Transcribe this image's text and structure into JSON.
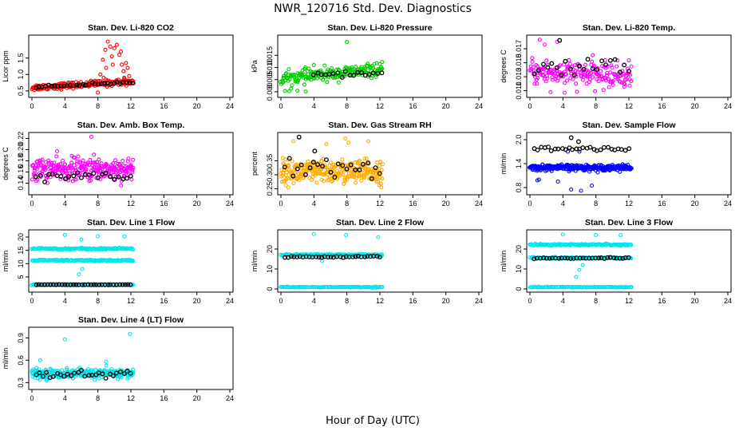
{
  "figure": {
    "title": "NWR_120716  Std. Dev. Diagnostics",
    "xlabel": "Hour of Day (UTC)"
  },
  "chart_data": [
    {
      "id": "co2",
      "type": "scatter",
      "title": "Stan. Dev. Li-820 CO2",
      "ylabel": "Licor ppm",
      "xlim": [
        0,
        24
      ],
      "xticks": [
        "0",
        "4",
        "8",
        "12",
        "16",
        "20",
        "24"
      ],
      "ylim": [
        0.4,
        2.1
      ],
      "yticks": [
        {
          "v": 0.5,
          "label": "0.5"
        },
        {
          "v": 1.0,
          "label": "1.0"
        },
        {
          "v": 1.5,
          "label": "1.5"
        }
      ],
      "series": [
        {
          "name": "sample",
          "color": "#ff0000",
          "center": 0.6,
          "spread": 0.08,
          "trend": 0.015,
          "x0": 0,
          "x1": 12.3,
          "n": 180,
          "extra": [
            [
              8.3,
              1.0
            ],
            [
              8.6,
              1.45
            ],
            [
              8.9,
              1.75
            ],
            [
              9.2,
              2.0
            ],
            [
              9.5,
              1.85
            ],
            [
              9.7,
              1.55
            ],
            [
              10.0,
              1.8
            ],
            [
              10.3,
              1.9
            ],
            [
              10.6,
              1.6
            ],
            [
              10.9,
              1.3
            ],
            [
              11.1,
              1.1
            ],
            [
              11.4,
              1.35
            ],
            [
              11.6,
              1.2
            ],
            [
              11.8,
              0.95
            ],
            [
              9.0,
              1.2
            ],
            [
              9.8,
              1.3
            ],
            [
              10.8,
              1.7
            ],
            [
              11.2,
              0.9
            ],
            [
              8.7,
              0.9
            ],
            [
              8.0,
              0.45
            ]
          ]
        },
        {
          "name": "reference",
          "color": "#000000",
          "center": 0.62,
          "spread": 0.03,
          "trend": 0.012,
          "x0": 0.5,
          "x1": 12.2,
          "n": 32,
          "extra": []
        }
      ]
    },
    {
      "id": "pressure",
      "type": "scatter",
      "title": "Stan. Dev. Li-820 Pressure",
      "ylabel": "kPa",
      "xlim": [
        0,
        24
      ],
      "xticks": [
        "0",
        "4",
        "8",
        "12",
        "16",
        "20",
        "24"
      ],
      "ylim": [
        -0.001,
        0.022
      ],
      "yticks": [
        {
          "v": 0.0,
          "label": "0.000"
        },
        {
          "v": 0.005,
          "label": "0.005"
        },
        {
          "v": 0.01,
          "label": "0.010"
        },
        {
          "v": 0.015,
          "label": "0.015"
        }
      ],
      "series": [
        {
          "name": "sample",
          "color": "#00cc00",
          "center": 0.0055,
          "spread": 0.0022,
          "trend": 0.0003,
          "x0": 0,
          "x1": 12.3,
          "n": 200,
          "extra": [
            [
              8.0,
              0.0205
            ],
            [
              4.0,
              0.011
            ],
            [
              1.0,
              0.0002
            ],
            [
              2.0,
              0.0004
            ],
            [
              3.0,
              0.0001
            ],
            [
              0.5,
              0.0003
            ]
          ]
        },
        {
          "name": "reference",
          "color": "#000000",
          "center": 0.0068,
          "spread": 0.0008,
          "trend": 0.0001,
          "x0": 4.0,
          "x1": 12.2,
          "n": 18,
          "extra": []
        }
      ]
    },
    {
      "id": "temp",
      "type": "scatter",
      "title": "Stan. Dev. Li-820 Temp.",
      "ylabel": "degrees C",
      "xlim": [
        0,
        24
      ],
      "xticks": [
        "0",
        "4",
        "8",
        "12",
        "16",
        "20",
        "24"
      ],
      "ylim": [
        0.0105,
        0.0185
      ],
      "yticks": [
        {
          "v": 0.011,
          "label": "0.011"
        },
        {
          "v": 0.013,
          "label": "0.013"
        },
        {
          "v": 0.015,
          "label": "0.015"
        },
        {
          "v": 0.017,
          "label": "0.017"
        }
      ],
      "series": [
        {
          "name": "sample",
          "color": "#ff00ff",
          "center": 0.0137,
          "spread": 0.0015,
          "trend": -5e-05,
          "x0": 0,
          "x1": 12.3,
          "n": 200,
          "extra": [
            [
              1.2,
              0.0183
            ],
            [
              3.3,
              0.018
            ],
            [
              1.8,
              0.0176
            ],
            [
              2.5,
              0.0108
            ],
            [
              4.2,
              0.0107
            ]
          ]
        },
        {
          "name": "reference",
          "color": "#000000",
          "center": 0.0143,
          "spread": 0.0012,
          "trend": 0.0,
          "x0": 0.5,
          "x1": 12.0,
          "n": 22,
          "extra": [
            [
              3.6,
              0.0182
            ]
          ]
        }
      ]
    },
    {
      "id": "boxtemp",
      "type": "scatter",
      "title": "Stan. Dev. Amb. Box Temp.",
      "ylabel": "degrees C",
      "xlim": [
        0,
        24
      ],
      "xticks": [
        "0",
        "4",
        "8",
        "12",
        "16",
        "20",
        "24"
      ],
      "ylim": [
        0.125,
        0.225
      ],
      "yticks": [
        {
          "v": 0.14,
          "label": "0.14"
        },
        {
          "v": 0.16,
          "label": "0.16"
        },
        {
          "v": 0.18,
          "label": "0.18"
        },
        {
          "v": 0.2,
          "label": "0.20"
        },
        {
          "v": 0.22,
          "label": "0.22"
        }
      ],
      "series": [
        {
          "name": "sample",
          "color": "#ff00ff",
          "center": 0.165,
          "spread": 0.017,
          "trend": 0.0,
          "x0": 0,
          "x1": 12.3,
          "n": 260,
          "extra": [
            [
              7.2,
              0.223
            ]
          ]
        },
        {
          "name": "reference",
          "color": "#000000",
          "center": 0.153,
          "spread": 0.009,
          "trend": 0.0,
          "x0": 0.5,
          "x1": 12.0,
          "n": 24,
          "extra": []
        }
      ]
    },
    {
      "id": "rh",
      "type": "scatter",
      "title": "Stan. Dev. Gas Stream RH",
      "ylabel": "percent",
      "xlim": [
        0,
        24
      ],
      "xticks": [
        "0",
        "4",
        "8",
        "12",
        "16",
        "20",
        "24"
      ],
      "ylim": [
        0.24,
        0.44
      ],
      "yticks": [
        {
          "v": 0.25,
          "label": "0.25"
        },
        {
          "v": 0.3,
          "label": "0.30"
        },
        {
          "v": 0.35,
          "label": "0.35"
        }
      ],
      "series": [
        {
          "name": "sample",
          "color": "#ffaa00",
          "center": 0.31,
          "spread": 0.035,
          "trend": 0.0,
          "x0": 0,
          "x1": 12.3,
          "n": 300,
          "extra": [
            [
              1.5,
              0.42
            ],
            [
              7.8,
              0.43
            ],
            [
              8.2,
              0.415
            ],
            [
              10.6,
              0.42
            ],
            [
              5.5,
              0.41
            ]
          ]
        },
        {
          "name": "reference",
          "color": "#000000",
          "center": 0.32,
          "spread": 0.03,
          "trend": 0.0,
          "x0": 0.5,
          "x1": 12.0,
          "n": 24,
          "extra": [
            [
              2.2,
              0.435
            ],
            [
              4.1,
              0.385
            ]
          ]
        }
      ]
    },
    {
      "id": "sampleflow",
      "type": "scatter",
      "title": "Stan. Dev. Sample Flow",
      "ylabel": "ml/min",
      "xlim": [
        0,
        24
      ],
      "xticks": [
        "0",
        "4",
        "8",
        "12",
        "16",
        "20",
        "24"
      ],
      "ylim": [
        0.7,
        2.1
      ],
      "yticks": [
        {
          "v": 0.8,
          "label": "0.8"
        },
        {
          "v": 1.4,
          "label": "1.4"
        },
        {
          "v": 2.0,
          "label": "2.0"
        }
      ],
      "series": [
        {
          "name": "sample",
          "color": "#0000ff",
          "center": 1.3,
          "spread": 0.06,
          "trend": 0.0,
          "x0": 0,
          "x1": 12.3,
          "n": 280,
          "extra": [
            [
              0.9,
              0.98
            ],
            [
              1.1,
              1.0
            ],
            [
              3.4,
              0.95
            ],
            [
              5.0,
              0.75
            ],
            [
              6.2,
              0.72
            ],
            [
              7.5,
              0.85
            ],
            [
              4.6,
              1.7
            ],
            [
              6.0,
              1.7
            ]
          ]
        },
        {
          "name": "reference",
          "color": "#000000",
          "center": 1.76,
          "spread": 0.05,
          "trend": 0.0,
          "x0": 0.5,
          "x1": 12.0,
          "n": 28,
          "extra": [
            [
              5.0,
              2.05
            ],
            [
              5.9,
              1.95
            ]
          ]
        }
      ]
    },
    {
      "id": "line1",
      "type": "scatter",
      "title": "Stan. Dev. Line 1 Flow",
      "ylabel": "ml/min",
      "xlim": [
        0,
        24
      ],
      "xticks": [
        "0",
        "4",
        "8",
        "12",
        "16",
        "20",
        "24"
      ],
      "ylim": [
        0.5,
        21.5
      ],
      "yticks": [
        {
          "v": 5,
          "label": "5"
        },
        {
          "v": 10,
          "label": "10"
        },
        {
          "v": 15,
          "label": "15"
        },
        {
          "v": 20,
          "label": "20"
        }
      ],
      "series": [
        {
          "name": "band-high",
          "color": "#00e5ee",
          "center": 15.6,
          "spread": 0.25,
          "trend": 0.0,
          "x0": 0,
          "x1": 12.3,
          "n": 130,
          "extra": [
            [
              4.0,
              20.8
            ],
            [
              8.0,
              20.3
            ],
            [
              11.2,
              20.2
            ],
            [
              6.0,
              19.0
            ]
          ]
        },
        {
          "name": "band-mid",
          "color": "#00e5ee",
          "center": 11.2,
          "spread": 0.25,
          "trend": 0.0,
          "x0": 0,
          "x1": 12.3,
          "n": 130,
          "extra": [
            [
              5.7,
              6.0
            ],
            [
              6.1,
              8.0
            ]
          ]
        },
        {
          "name": "band-low",
          "color": "#00e5ee",
          "center": 2.0,
          "spread": 0.12,
          "trend": 0.0,
          "x0": 0,
          "x1": 12.3,
          "n": 100,
          "extra": []
        },
        {
          "name": "reference",
          "color": "#000000",
          "center": 2.1,
          "spread": 0.05,
          "trend": 0.0,
          "x0": 0.5,
          "x1": 12.0,
          "n": 34,
          "extra": []
        }
      ]
    },
    {
      "id": "line2",
      "type": "scatter",
      "title": "Stan. Dev. Line 2 Flow",
      "ylabel": "ml/min",
      "xlim": [
        0,
        24
      ],
      "xticks": [
        "0",
        "4",
        "8",
        "12",
        "16",
        "20",
        "24"
      ],
      "ylim": [
        0,
        28
      ],
      "yticks": [
        {
          "v": 0,
          "label": "0"
        },
        {
          "v": 10,
          "label": "10"
        },
        {
          "v": 20,
          "label": "20"
        }
      ],
      "series": [
        {
          "name": "band-high",
          "color": "#00e5ee",
          "center": 17.0,
          "spread": 0.35,
          "trend": 0.0,
          "x0": 0,
          "x1": 12.3,
          "n": 130,
          "extra": [
            [
              4.0,
              27.5
            ],
            [
              7.9,
              27.0
            ],
            [
              11.8,
              26.0
            ],
            [
              5.0,
              14.0
            ]
          ]
        },
        {
          "name": "band-low",
          "color": "#00e5ee",
          "center": 0.9,
          "spread": 0.15,
          "trend": 0.0,
          "x0": 0,
          "x1": 12.3,
          "n": 100,
          "extra": []
        },
        {
          "name": "reference",
          "color": "#000000",
          "center": 16.0,
          "spread": 0.25,
          "trend": 0.015,
          "x0": 0.5,
          "x1": 12.0,
          "n": 32,
          "extra": []
        }
      ]
    },
    {
      "id": "line3",
      "type": "scatter",
      "title": "Stan. Dev. Line 3 Flow",
      "ylabel": "ml/min",
      "xlim": [
        0,
        24
      ],
      "xticks": [
        "0",
        "4",
        "8",
        "12",
        "16",
        "20",
        "24"
      ],
      "ylim": [
        0,
        28
      ],
      "yticks": [
        {
          "v": 0,
          "label": "0"
        },
        {
          "v": 10,
          "label": "10"
        },
        {
          "v": 20,
          "label": "20"
        }
      ],
      "series": [
        {
          "name": "band-high",
          "color": "#00e5ee",
          "center": 22.2,
          "spread": 0.35,
          "trend": 0.0,
          "x0": 0,
          "x1": 12.3,
          "n": 130,
          "extra": [
            [
              4.0,
              27.3
            ],
            [
              8.0,
              27.0
            ],
            [
              11.0,
              27.0
            ],
            [
              6.0,
              9.5
            ],
            [
              5.6,
              6.0
            ],
            [
              6.4,
              12.0
            ]
          ]
        },
        {
          "name": "band-mid",
          "color": "#00e5ee",
          "center": 15.6,
          "spread": 0.25,
          "trend": 0.0,
          "x0": 0,
          "x1": 12.3,
          "n": 110,
          "extra": []
        },
        {
          "name": "band-low",
          "color": "#00e5ee",
          "center": 0.9,
          "spread": 0.15,
          "trend": 0.0,
          "x0": 0,
          "x1": 12.3,
          "n": 100,
          "extra": []
        },
        {
          "name": "reference",
          "color": "#000000",
          "center": 15.3,
          "spread": 0.25,
          "trend": 0.02,
          "x0": 0.5,
          "x1": 12.0,
          "n": 32,
          "extra": []
        }
      ]
    },
    {
      "id": "line4",
      "type": "scatter",
      "title": "Stan. Dev. Line 4 (LT) Flow",
      "ylabel": "ml/min",
      "xlim": [
        0,
        24
      ],
      "xticks": [
        "0",
        "4",
        "8",
        "12",
        "16",
        "20",
        "24"
      ],
      "ylim": [
        0.25,
        1.0
      ],
      "yticks": [
        {
          "v": 0.3,
          "label": "0.3"
        },
        {
          "v": 0.6,
          "label": "0.6"
        },
        {
          "v": 0.9,
          "label": "0.9"
        }
      ],
      "series": [
        {
          "name": "sample",
          "color": "#00e5ee",
          "center": 0.42,
          "spread": 0.05,
          "trend": 0.0,
          "x0": 0,
          "x1": 12.3,
          "n": 300,
          "extra": [
            [
              4.0,
              0.88
            ],
            [
              11.9,
              0.95
            ],
            [
              1.0,
              0.6
            ],
            [
              9.0,
              0.58
            ]
          ]
        },
        {
          "name": "reference",
          "color": "#000000",
          "center": 0.41,
          "spread": 0.04,
          "trend": 0.0,
          "x0": 0.5,
          "x1": 12.0,
          "n": 28,
          "extra": []
        }
      ]
    }
  ]
}
